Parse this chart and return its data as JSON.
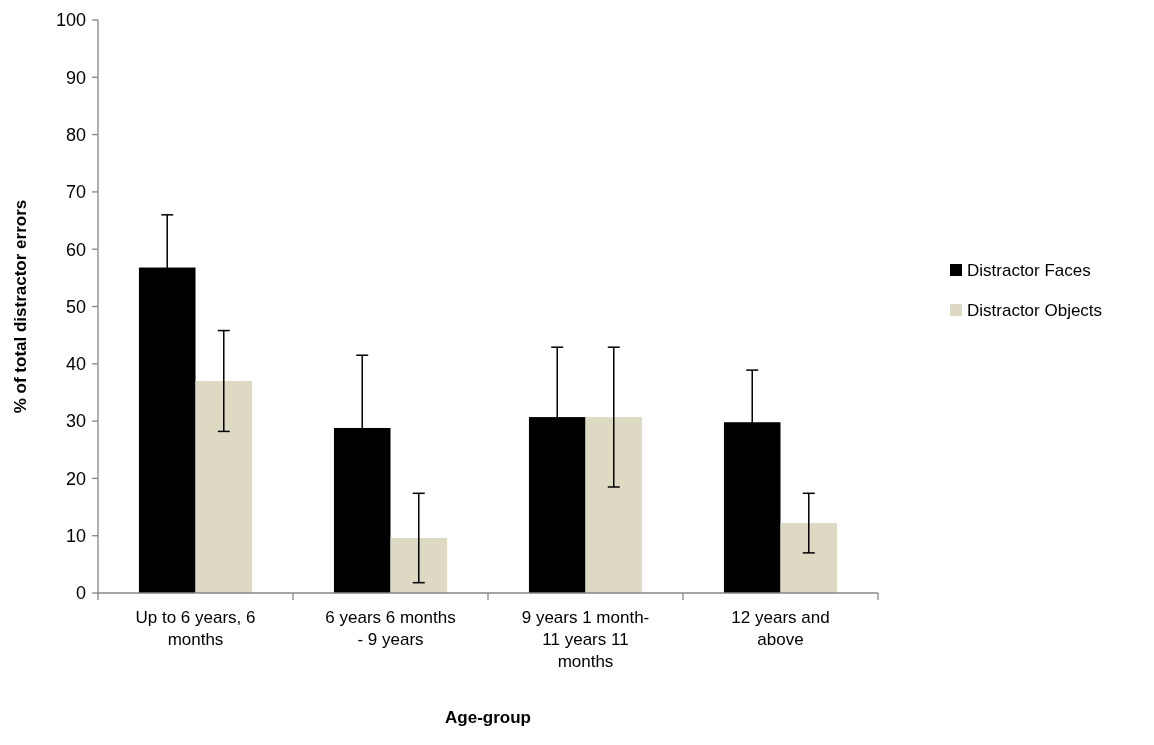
{
  "chart_data": {
    "type": "bar",
    "xlabel": "Age-group",
    "ylabel": "% of total distractor errors",
    "categories": [
      "Up to 6 years, 6 months",
      "6 years 6 months - 9 years",
      "9 years 1 month-11 years 11 months",
      "12 years and above"
    ],
    "series": [
      {
        "name": "Distractor Faces",
        "color": "#000000",
        "values": [
          56.8,
          28.8,
          30.7,
          29.8
        ],
        "errors": [
          9.2,
          12.7,
          12.2,
          9.1
        ]
      },
      {
        "name": "Distractor Objects",
        "color": "#ddd9c3",
        "values": [
          37,
          9.6,
          30.7,
          12.2
        ],
        "errors": [
          8.8,
          7.8,
          12.2,
          5.2
        ]
      }
    ],
    "ylim": [
      0,
      100
    ],
    "yticks": [
      0,
      10,
      20,
      30,
      40,
      50,
      60,
      70,
      80,
      90,
      100
    ],
    "grid": false,
    "legend": "right"
  }
}
